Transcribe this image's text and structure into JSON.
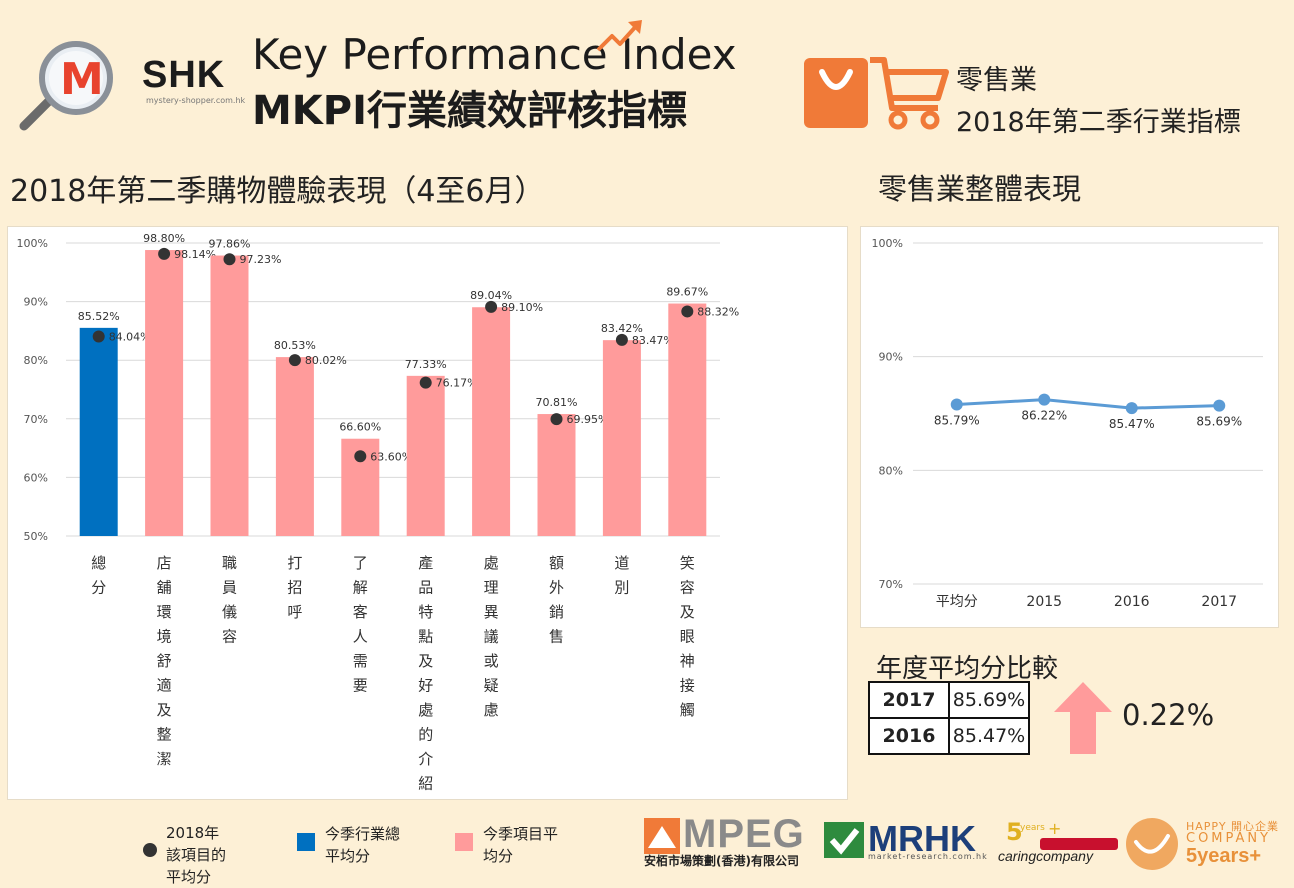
{
  "header": {
    "logo_text": "SHK",
    "logo_letter": "M",
    "logo_url": "mystery-shopper.com.hk",
    "title_en": "Key Performance Index",
    "title_zh": "MKPI行業績效評核指標",
    "industry": "零售業",
    "period": "2018年第二季行業指標"
  },
  "sections": {
    "left_title": "2018年第二季購物體驗表現（4至6月）",
    "right_title": "零售業整體表現"
  },
  "colors": {
    "total_bar": "#0070c0",
    "item_bar": "#ff9b9b",
    "dot": "#333333",
    "line": "#5b9bd5",
    "arrow": "#ff9b9b",
    "accent": "#f07a38"
  },
  "chart_data": [
    {
      "type": "bar",
      "categories": [
        "總分",
        "店舖環境舒適及整潔",
        "職員儀容",
        "打招呼",
        "了解客人需要",
        "產品特點及好處的介紹",
        "處理異議或疑慮",
        "額外銷售",
        "道別",
        "笑容及眼神接觸"
      ],
      "series": [
        {
          "name": "今季項目平均分",
          "values": [
            85.52,
            98.8,
            97.86,
            80.53,
            66.6,
            77.33,
            89.04,
            70.81,
            83.42,
            89.67
          ]
        },
        {
          "name": "2018年該項目的平均分",
          "values": [
            84.04,
            98.14,
            97.23,
            80.02,
            63.6,
            76.17,
            89.1,
            69.95,
            83.47,
            88.32
          ]
        }
      ],
      "value_labels": [
        "85.52%",
        "98.80%",
        "97.86%",
        "80.53%",
        "66.60%",
        "77.33%",
        "89.04%",
        "70.81%",
        "83.42%",
        "89.67%"
      ],
      "dot_labels": [
        "84.04%",
        "98.14%",
        "97.23%",
        "80.02%",
        "63.60%",
        "76.17%",
        "89.10%",
        "69.95%",
        "83.47%",
        "88.32%"
      ],
      "yticks": [
        "100%",
        "90%",
        "80%",
        "70%",
        "60%",
        "50%"
      ],
      "ylim": [
        50,
        100
      ],
      "grid": true
    },
    {
      "type": "line",
      "categories": [
        "平均分",
        "2015",
        "2016",
        "2017"
      ],
      "values": [
        85.79,
        86.22,
        85.47,
        85.69
      ],
      "value_labels": [
        "85.79%",
        "86.22%",
        "85.47%",
        "85.69%"
      ],
      "yticks": [
        "100%",
        "90%",
        "80%",
        "70%"
      ],
      "ylim": [
        70,
        100
      ],
      "grid": true
    }
  ],
  "comparison": {
    "title": "年度平均分比較",
    "rows": [
      {
        "year": "2017",
        "value": "85.69%"
      },
      {
        "year": "2016",
        "value": "85.47%"
      }
    ],
    "diff": "0.22%"
  },
  "legend": {
    "dot": "2018年該項目的平均分",
    "blue": "今季行業總平均分",
    "pink": "今季項目平均分"
  },
  "sponsors": {
    "mpeg": "MPEG",
    "mpeg_sub": "安栢市場策劃(香港)有限公司",
    "mrhk": "MRHK",
    "mrhk_sub": "market-research.com.hk",
    "caring": "caringcompany",
    "happy_line1": "HAPPY 開心企業",
    "happy_line2": "COMPANY",
    "happy_line3": "5years+"
  }
}
